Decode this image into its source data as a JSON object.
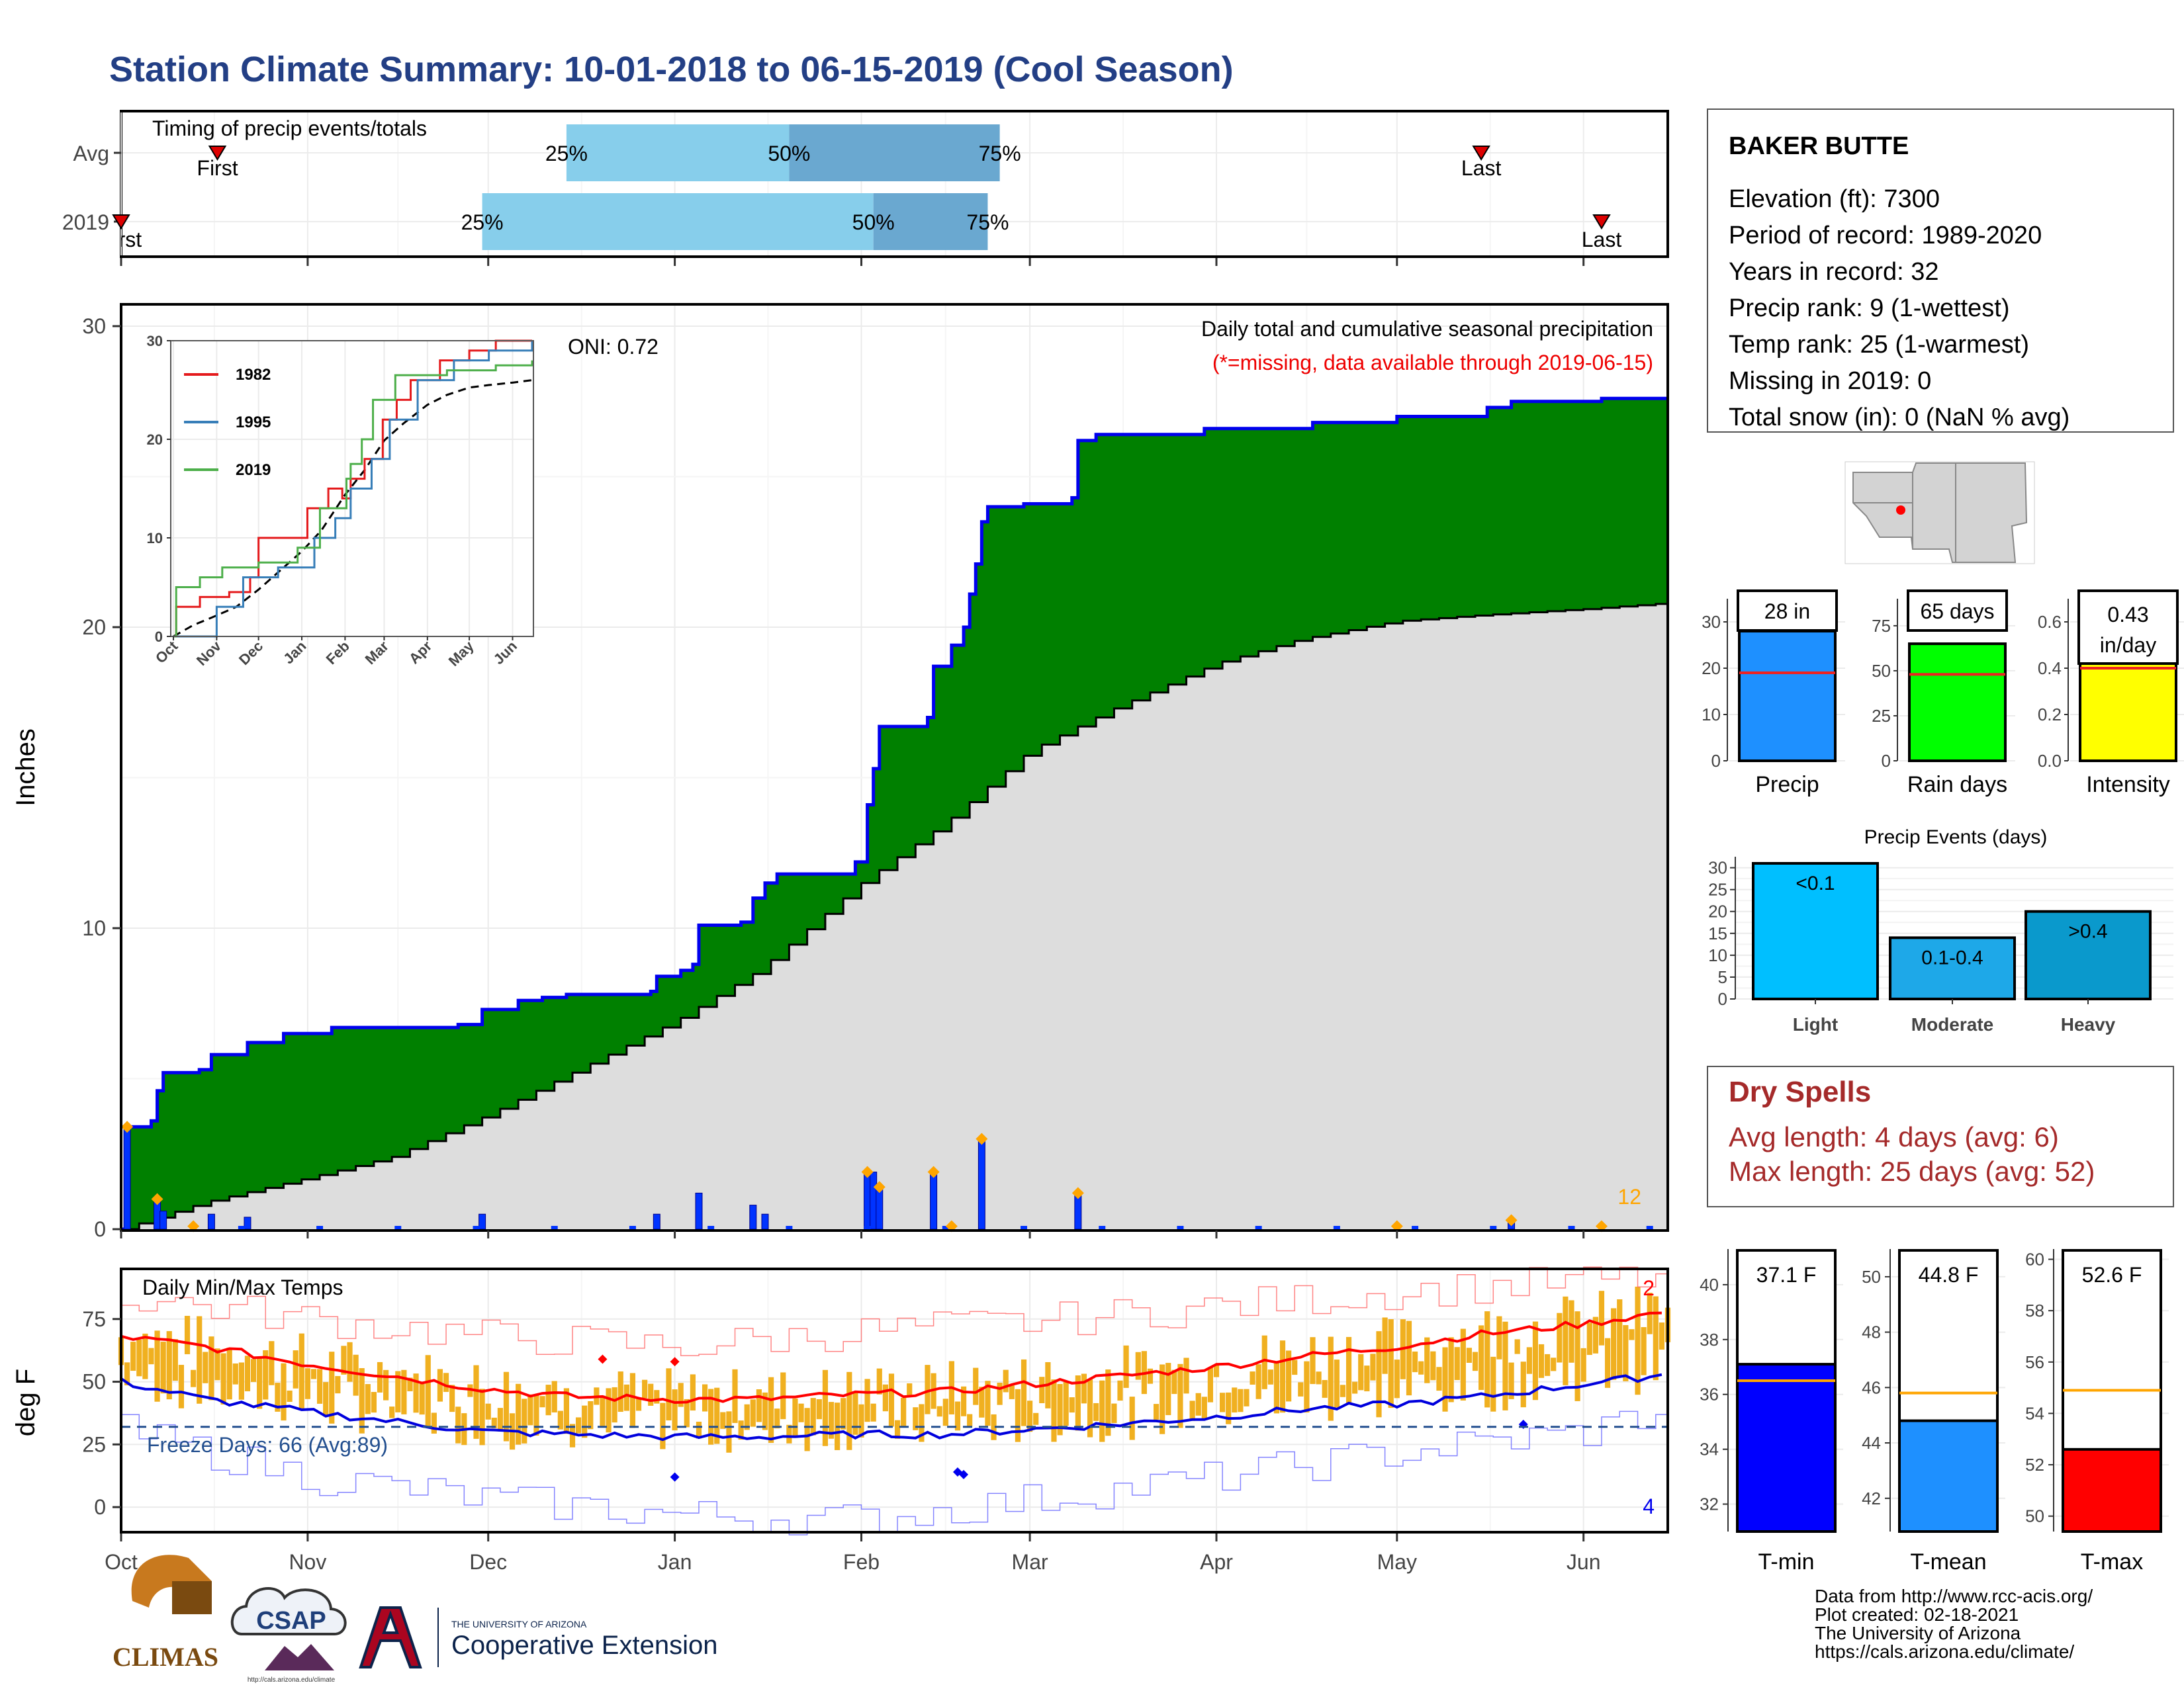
{
  "title": "Station Climate Summary: 10-01-2018 to 06-15-2019 (Cool Season)",
  "colors": {
    "title": "#233f85",
    "precip_fill": "#008000",
    "precip_line": "#0000ee",
    "normal_fill": "#dddddd",
    "pct_light": "#87ceeb",
    "pct_dark": "#6aa8d0",
    "temp_bar": "#f0b020",
    "tmax_line": "#ff0000",
    "tmin_line": "#0000dd",
    "dry_text": "#a52a2a",
    "accent_orange": "#ffa500"
  },
  "timing_panel": {
    "label": "Timing of precip events/totals",
    "row_labels": [
      "Avg",
      "2019"
    ],
    "avg": {
      "first": "First",
      "last": "Last",
      "p25": "25%",
      "p50": "50%",
      "p75": "75%",
      "first_date": "2018-10-17",
      "last_date": "2019-05-15",
      "p25_date": "2018-12-14",
      "p50_date": "2019-01-20",
      "p75_date": "2019-02-24"
    },
    "y2019": {
      "first": "First",
      "last": "Last",
      "p25": "25%",
      "p50": "50%",
      "p75": "75%",
      "first_date": "2018-10-01",
      "last_date": "2019-06-04",
      "p25_date": "2018-11-30",
      "p50_date": "2019-02-03",
      "p75_date": "2019-02-22"
    }
  },
  "precip_panel": {
    "ylabel": "Inches",
    "yticks": [
      "0",
      "10",
      "20",
      "30"
    ],
    "subtitle": "Daily total and cumulative seasonal precipitation",
    "missing_note": "(*=missing, data available through 2019-06-15)",
    "oni": "ONI: 0.72",
    "corner_count": "12"
  },
  "inset": {
    "series": [
      {
        "name": "1982",
        "color": "#e41a1c"
      },
      {
        "name": "1995",
        "color": "#377eb8"
      },
      {
        "name": "2019",
        "color": "#4daf4a"
      }
    ],
    "yticks": [
      "0",
      "10",
      "20",
      "30"
    ],
    "xticks": [
      "Oct",
      "Nov",
      "Dec",
      "Jan",
      "Feb",
      "Mar",
      "Apr",
      "May",
      "Jun"
    ]
  },
  "temp_panel": {
    "ylabel": "deg F",
    "label": "Daily Min/Max Temps",
    "freeze_label": "Freeze Days: 66 (Avg:89)",
    "yticks": [
      "0",
      "25",
      "50",
      "75"
    ],
    "record_high_count": "2",
    "record_low_count": "4"
  },
  "months": [
    "Oct",
    "Nov",
    "Dec",
    "Jan",
    "Feb",
    "Mar",
    "Apr",
    "May",
    "Jun"
  ],
  "station": {
    "name": "BAKER BUTTE",
    "lines": [
      "Elevation (ft): 7300",
      "Period of record: 1989-2020",
      "Years in record: 32",
      "Precip rank: 9 (1-wettest)",
      "Temp rank: 25 (1-warmest)",
      "Missing in 2019: 0",
      "Total snow (in): 0 (NaN % avg)"
    ]
  },
  "mini_bars": [
    {
      "label": "Precip",
      "value_text": "28 in",
      "value": 28,
      "avg": 19,
      "ymax": 35,
      "ticks": [
        "0",
        "10",
        "20",
        "30"
      ],
      "tickvals": [
        0,
        10,
        20,
        30
      ],
      "color": "#1e90ff"
    },
    {
      "label": "Rain days",
      "value_text": "65 days",
      "value": 65,
      "avg": 48,
      "ymax": 90,
      "ticks": [
        "0",
        "25",
        "50",
        "75"
      ],
      "tickvals": [
        0,
        25,
        50,
        75
      ],
      "color": "#00ff00"
    },
    {
      "label": "Intensity",
      "value_text": "0.43 in/day",
      "value_lines": [
        "0.43",
        "in/day"
      ],
      "value": 0.43,
      "avg": 0.4,
      "ymax": 0.7,
      "ticks": [
        "0.0",
        "0.2",
        "0.4",
        "0.6"
      ],
      "tickvals": [
        0,
        0.2,
        0.4,
        0.6
      ],
      "color": "#ffff00"
    }
  ],
  "precip_events": {
    "title": "Precip Events (days)",
    "categories": [
      "Light",
      "Moderate",
      "Heavy"
    ],
    "labels": [
      "<0.1",
      "0.1-0.4",
      ">0.4"
    ],
    "values": [
      31,
      14,
      20
    ],
    "colors": [
      "#00bfff",
      "#1ea8e8",
      "#0a99cc"
    ],
    "yticks": [
      "0",
      "5",
      "10",
      "15",
      "20",
      "25",
      "30"
    ]
  },
  "dry_spells": {
    "title": "Dry Spells",
    "avg": "Avg length: 4 days (avg: 6)",
    "max": "Max length: 25 days (avg: 52)"
  },
  "temp_bars": [
    {
      "label": "T-min",
      "value_text": "37.1 F",
      "value": 37.1,
      "avg": 36.5,
      "ymin": 31,
      "ymax": 41.3,
      "ticks": [
        "32",
        "34",
        "36",
        "38",
        "40"
      ],
      "tickvals": [
        32,
        34,
        36,
        38,
        40
      ],
      "color": "#0000ff"
    },
    {
      "label": "T-mean",
      "value_text": "44.8 F",
      "value": 44.8,
      "avg": 45.8,
      "ymin": 40.8,
      "ymax": 51,
      "ticks": [
        "42",
        "44",
        "46",
        "48",
        "50"
      ],
      "tickvals": [
        42,
        44,
        46,
        48,
        50
      ],
      "color": "#1e90ff"
    },
    {
      "label": "T-max",
      "value_text": "52.6 F",
      "value": 52.6,
      "avg": 54.9,
      "ymin": 49.4,
      "ymax": 60.4,
      "ticks": [
        "50",
        "52",
        "54",
        "56",
        "58",
        "60"
      ],
      "tickvals": [
        50,
        52,
        54,
        56,
        58,
        60
      ],
      "color": "#ff0000"
    }
  ],
  "footer": {
    "lines": [
      "Data from http://www.rcc-acis.org/",
      "Plot created: 02-18-2021",
      "The University of Arizona",
      "https://cals.arizona.edu/climate/"
    ]
  },
  "logos": {
    "climas": "CLIMAS",
    "csap": "CSAP",
    "csap_url": "http://cals.arizona.edu/climate",
    "ua_small": "THE UNIVERSITY OF ARIZONA",
    "ua_big": "Cooperative Extension"
  },
  "chart_data": [
    {
      "type": "area",
      "title": "Daily total and cumulative seasonal precipitation",
      "ylabel": "Inches",
      "ylim": [
        0,
        30
      ],
      "x_range": [
        "2018-10-01",
        "2019-06-15"
      ],
      "series": [
        {
          "name": "cumulative",
          "points": [
            [
              "2018-10-01",
              0
            ],
            [
              "2018-10-02",
              3.4
            ],
            [
              "2018-10-06",
              3.6
            ],
            [
              "2018-10-07",
              4.6
            ],
            [
              "2018-10-08",
              5.2
            ],
            [
              "2018-10-14",
              5.3
            ],
            [
              "2018-10-16",
              5.8
            ],
            [
              "2018-10-22",
              6.2
            ],
            [
              "2018-10-28",
              6.5
            ],
            [
              "2018-11-05",
              6.7
            ],
            [
              "2018-11-26",
              6.8
            ],
            [
              "2018-11-30",
              7.3
            ],
            [
              "2018-12-06",
              7.6
            ],
            [
              "2018-12-10",
              7.7
            ],
            [
              "2018-12-14",
              7.8
            ],
            [
              "2018-12-28",
              7.9
            ],
            [
              "2018-12-29",
              8.4
            ],
            [
              "2019-01-02",
              8.6
            ],
            [
              "2019-01-04",
              8.8
            ],
            [
              "2019-01-05",
              10.1
            ],
            [
              "2019-01-12",
              10.2
            ],
            [
              "2019-01-14",
              11.0
            ],
            [
              "2019-01-16",
              11.5
            ],
            [
              "2019-01-18",
              11.8
            ],
            [
              "2019-01-31",
              12.2
            ],
            [
              "2019-02-02",
              14.1
            ],
            [
              "2019-02-03",
              15.3
            ],
            [
              "2019-02-04",
              16.7
            ],
            [
              "2019-02-12",
              17.0
            ],
            [
              "2019-02-13",
              18.7
            ],
            [
              "2019-02-16",
              19.4
            ],
            [
              "2019-02-18",
              20.0
            ],
            [
              "2019-02-19",
              21.1
            ],
            [
              "2019-02-20",
              22.1
            ],
            [
              "2019-02-21",
              23.5
            ],
            [
              "2019-02-22",
              24.0
            ],
            [
              "2019-02-28",
              24.1
            ],
            [
              "2019-03-08",
              24.3
            ],
            [
              "2019-03-09",
              26.2
            ],
            [
              "2019-03-12",
              26.4
            ],
            [
              "2019-03-30",
              26.6
            ],
            [
              "2019-04-17",
              26.8
            ],
            [
              "2019-05-01",
              27.0
            ],
            [
              "2019-05-16",
              27.3
            ],
            [
              "2019-05-20",
              27.5
            ],
            [
              "2019-06-04",
              27.6
            ],
            [
              "2019-06-15",
              27.6
            ]
          ]
        },
        {
          "name": "average cumulative",
          "points": [
            [
              "2018-10-01",
              0
            ],
            [
              "2018-10-15",
              0.9
            ],
            [
              "2018-11-01",
              1.7
            ],
            [
              "2018-11-15",
              2.4
            ],
            [
              "2018-12-01",
              3.8
            ],
            [
              "2018-12-15",
              5.2
            ],
            [
              "2019-01-01",
              6.9
            ],
            [
              "2019-01-15",
              8.6
            ],
            [
              "2019-02-01",
              11.5
            ],
            [
              "2019-02-15",
              13.5
            ],
            [
              "2019-03-01",
              15.9
            ],
            [
              "2019-03-15",
              17.3
            ],
            [
              "2019-04-01",
              18.8
            ],
            [
              "2019-04-15",
              19.6
            ],
            [
              "2019-05-01",
              20.2
            ],
            [
              "2019-05-15",
              20.4
            ],
            [
              "2019-06-01",
              20.6
            ],
            [
              "2019-06-15",
              20.8
            ]
          ]
        }
      ],
      "daily_bars": [
        [
          "2018-10-02",
          3.4
        ],
        [
          "2018-10-07",
          1.0
        ],
        [
          "2018-10-08",
          0.6
        ],
        [
          "2018-10-16",
          0.5
        ],
        [
          "2018-10-22",
          0.4
        ],
        [
          "2018-11-30",
          0.5
        ],
        [
          "2018-12-29",
          0.5
        ],
        [
          "2019-01-05",
          1.2
        ],
        [
          "2019-01-14",
          0.8
        ],
        [
          "2019-01-16",
          0.5
        ],
        [
          "2019-02-02",
          1.9
        ],
        [
          "2019-02-03",
          1.9
        ],
        [
          "2019-02-04",
          1.4
        ],
        [
          "2019-02-13",
          1.9
        ],
        [
          "2019-02-21",
          3.0
        ],
        [
          "2019-03-09",
          1.2
        ],
        [
          "2019-05-20",
          0.3
        ]
      ]
    },
    {
      "type": "line",
      "title": "Daily Min/Max Temps",
      "ylabel": "deg F",
      "ylim": [
        -10,
        95
      ],
      "freeze_line": 32,
      "series": [
        {
          "name": "avg max",
          "points": [
            [
              "2018-10-01",
              68
            ],
            [
              "2018-10-15",
              64
            ],
            [
              "2018-11-01",
              57
            ],
            [
              "2018-12-01",
              47
            ],
            [
              "2018-12-15",
              44
            ],
            [
              "2019-01-01",
              43
            ],
            [
              "2019-01-15",
              43
            ],
            [
              "2019-02-01",
              45
            ],
            [
              "2019-02-15",
              46
            ],
            [
              "2019-03-01",
              49
            ],
            [
              "2019-03-15",
              52
            ],
            [
              "2019-04-01",
              56
            ],
            [
              "2019-04-15",
              60
            ],
            [
              "2019-05-01",
              64
            ],
            [
              "2019-05-15",
              69
            ],
            [
              "2019-06-01",
              73
            ],
            [
              "2019-06-15",
              78
            ]
          ]
        },
        {
          "name": "avg min",
          "points": [
            [
              "2018-10-01",
              50
            ],
            [
              "2018-10-15",
              43
            ],
            [
              "2018-11-01",
              38
            ],
            [
              "2018-12-01",
              30
            ],
            [
              "2018-12-15",
              29
            ],
            [
              "2019-01-01",
              28
            ],
            [
              "2019-01-15",
              28
            ],
            [
              "2019-02-01",
              29
            ],
            [
              "2019-02-15",
              29
            ],
            [
              "2019-03-01",
              31
            ],
            [
              "2019-03-15",
              33
            ],
            [
              "2019-04-01",
              36
            ],
            [
              "2019-04-15",
              39
            ],
            [
              "2019-05-01",
              41
            ],
            [
              "2019-05-15",
              44
            ],
            [
              "2019-06-01",
              49
            ],
            [
              "2019-06-15",
              53
            ]
          ]
        },
        {
          "name": "record max",
          "points": [
            [
              "2018-10-01",
              84
            ],
            [
              "2018-11-01",
              75
            ],
            [
              "2018-12-01",
              68
            ],
            [
              "2019-01-01",
              64
            ],
            [
              "2019-02-01",
              70
            ],
            [
              "2019-03-01",
              74
            ],
            [
              "2019-04-01",
              80
            ],
            [
              "2019-05-01",
              86
            ],
            [
              "2019-06-01",
              90
            ],
            [
              "2019-06-15",
              92
            ]
          ]
        },
        {
          "name": "record min",
          "points": [
            [
              "2018-10-01",
              30
            ],
            [
              "2018-11-01",
              12
            ],
            [
              "2018-12-01",
              3
            ],
            [
              "2019-01-01",
              -3
            ],
            [
              "2019-02-01",
              -5
            ],
            [
              "2019-03-01",
              3
            ],
            [
              "2019-04-01",
              12
            ],
            [
              "2019-05-01",
              22
            ],
            [
              "2019-06-01",
              30
            ],
            [
              "2019-06-15",
              40
            ]
          ]
        }
      ]
    }
  ]
}
